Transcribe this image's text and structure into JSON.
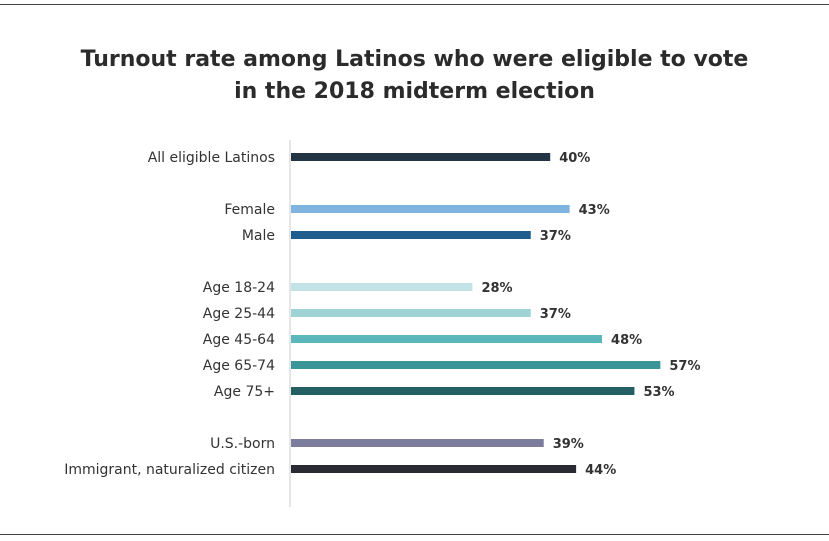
{
  "chart_data": {
    "type": "bar",
    "orientation": "horizontal",
    "title_line1": "Turnout rate among Latinos who were eligible to vote",
    "title_line2": "in the 2018 midterm election",
    "xlabel": "",
    "ylabel": "",
    "xlim": [
      0,
      100
    ],
    "grid": false,
    "value_suffix": "%",
    "categories": [
      "All eligible Latinos",
      "Female",
      "Male",
      "Age 18-24",
      "Age 25-44",
      "Age 45-64",
      "Age 65-74",
      "Age 75+",
      "U.S.-born",
      "Immigrant, naturalized citizen"
    ],
    "groups": [
      0,
      1,
      1,
      2,
      2,
      2,
      2,
      2,
      3,
      3
    ],
    "values": [
      40,
      43,
      37,
      28,
      37,
      48,
      57,
      53,
      39,
      44
    ],
    "colors": [
      "#233545",
      "#7fb3e0",
      "#1f5e8d",
      "#c2e4e8",
      "#9fd4d6",
      "#5cb7bd",
      "#3a9598",
      "#245f63",
      "#7c7c9c",
      "#2a2a33"
    ]
  }
}
